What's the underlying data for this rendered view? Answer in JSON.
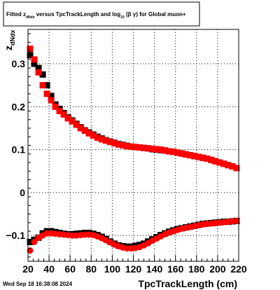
{
  "chart_data": {
    "type": "scatter",
    "title": {
      "prefix": "Fitted  z",
      "prefix_sub": "dNdx",
      "middle": "  versus  TpcTrackLength and log",
      "middle_sub": "10",
      "suffix": " (β  γ) for Global muon+"
    },
    "xlabel": "TpcTrackLength (cm)",
    "ylabel": "z",
    "ylabel_sub": "dNdx",
    "xlim": [
      20,
      220
    ],
    "ylim": [
      -0.16,
      0.38
    ],
    "xticks": [
      20,
      40,
      60,
      80,
      100,
      120,
      140,
      160,
      180,
      200,
      220
    ],
    "xtick_labels": [
      "20",
      "40",
      "60",
      "80",
      "100",
      "120",
      "140",
      "160",
      "180",
      "200",
      "220"
    ],
    "yticks": [
      -0.1,
      0,
      0.1,
      0.2,
      0.3
    ],
    "ytick_labels": [
      "−0.1",
      "0",
      "0.1",
      "0.2",
      "0.3"
    ],
    "grid": true,
    "footer": "Wed Sep 18 16:38:08 2024",
    "series": [
      {
        "color": "#000000",
        "marker": "square",
        "x": [
          22,
          26,
          30,
          34,
          38,
          42,
          46,
          50,
          54,
          58,
          62,
          66,
          70,
          74,
          78,
          82,
          86,
          90,
          94,
          98,
          102,
          106,
          110,
          114,
          118,
          122,
          126,
          130,
          134,
          138,
          142,
          146,
          150,
          154,
          158,
          162,
          166,
          170,
          174,
          178,
          182,
          186,
          190,
          194,
          198,
          202,
          206,
          210,
          214,
          218
        ],
        "y": [
          0.32,
          0.3,
          0.29,
          0.275,
          0.25,
          0.225,
          0.205,
          0.195,
          0.185,
          0.175,
          0.168,
          0.16,
          0.152,
          0.145,
          0.14,
          0.135,
          0.13,
          0.126,
          0.122,
          0.119,
          0.116,
          0.113,
          0.111,
          0.109,
          0.107,
          0.106,
          0.105,
          0.104,
          0.103,
          0.101,
          0.1,
          0.099,
          0.098,
          0.096,
          0.095,
          0.093,
          0.091,
          0.089,
          0.087,
          0.085,
          0.083,
          0.081,
          0.079,
          0.076,
          0.073,
          0.07,
          0.067,
          0.064,
          0.061,
          0.057
        ]
      },
      {
        "color": "#000000",
        "marker": "square",
        "x": [
          22,
          26,
          30,
          34,
          38,
          42,
          46,
          50,
          54,
          58,
          62,
          66,
          70,
          74,
          78,
          82,
          86,
          90,
          94,
          98,
          102,
          106,
          110,
          114,
          118,
          122,
          126,
          130,
          134,
          138,
          142,
          146,
          150,
          154,
          158,
          162,
          166,
          170,
          174,
          178,
          182,
          186,
          190,
          194,
          198,
          202,
          206,
          210,
          214,
          218
        ],
        "y": [
          -0.115,
          -0.11,
          -0.105,
          -0.095,
          -0.09,
          -0.09,
          -0.092,
          -0.094,
          -0.096,
          -0.097,
          -0.097,
          -0.096,
          -0.095,
          -0.094,
          -0.094,
          -0.096,
          -0.099,
          -0.103,
          -0.108,
          -0.114,
          -0.119,
          -0.123,
          -0.125,
          -0.126,
          -0.126,
          -0.124,
          -0.122,
          -0.119,
          -0.114,
          -0.109,
          -0.104,
          -0.099,
          -0.095,
          -0.091,
          -0.088,
          -0.085,
          -0.083,
          -0.081,
          -0.079,
          -0.077,
          -0.075,
          -0.073,
          -0.072,
          -0.071,
          -0.07,
          -0.069,
          -0.068,
          -0.068,
          -0.067,
          -0.066
        ]
      },
      {
        "color": "#ff0000",
        "marker": "square",
        "x": [
          22,
          26,
          30,
          34,
          38,
          42,
          46,
          50,
          54,
          58,
          62,
          66,
          70,
          74,
          78,
          82,
          86,
          90,
          94,
          98,
          102,
          106,
          110,
          114,
          118,
          122,
          126,
          130,
          134,
          138,
          142,
          146,
          150,
          154,
          158,
          162,
          166,
          170,
          174,
          178,
          182,
          186,
          190,
          194,
          198,
          202,
          206,
          210,
          214,
          218
        ],
        "y": [
          0.335,
          0.31,
          0.28,
          0.25,
          0.23,
          0.215,
          0.2,
          0.19,
          0.182,
          0.173,
          0.166,
          0.158,
          0.15,
          0.144,
          0.138,
          0.133,
          0.128,
          0.124,
          0.121,
          0.118,
          0.115,
          0.112,
          0.11,
          0.108,
          0.107,
          0.106,
          0.105,
          0.104,
          0.103,
          0.102,
          0.101,
          0.1,
          0.098,
          0.096,
          0.095,
          0.093,
          0.091,
          0.089,
          0.087,
          0.085,
          0.083,
          0.081,
          0.079,
          0.076,
          0.073,
          0.07,
          0.067,
          0.064,
          0.061,
          0.057
        ]
      },
      {
        "color": "#ff0000",
        "marker": "circle",
        "x": [
          22,
          26,
          30,
          34,
          38,
          42,
          46,
          50,
          54,
          58,
          62,
          66,
          70,
          74,
          78,
          82,
          86,
          90,
          94,
          98,
          102,
          106,
          110,
          114,
          118,
          122,
          126,
          130,
          134,
          138,
          142,
          146,
          150,
          154,
          158,
          162,
          166,
          170,
          174,
          178,
          182,
          186,
          190,
          194,
          198,
          202,
          206,
          210,
          214,
          218
        ],
        "y": [
          -0.135,
          -0.115,
          -0.105,
          -0.1,
          -0.095,
          -0.095,
          -0.096,
          -0.097,
          -0.098,
          -0.099,
          -0.1,
          -0.1,
          -0.099,
          -0.098,
          -0.098,
          -0.099,
          -0.102,
          -0.106,
          -0.111,
          -0.116,
          -0.121,
          -0.125,
          -0.128,
          -0.13,
          -0.13,
          -0.129,
          -0.127,
          -0.123,
          -0.118,
          -0.112,
          -0.107,
          -0.102,
          -0.097,
          -0.093,
          -0.09,
          -0.087,
          -0.084,
          -0.082,
          -0.08,
          -0.078,
          -0.076,
          -0.074,
          -0.073,
          -0.072,
          -0.071,
          -0.07,
          -0.069,
          -0.068,
          -0.067,
          -0.066
        ]
      }
    ]
  }
}
